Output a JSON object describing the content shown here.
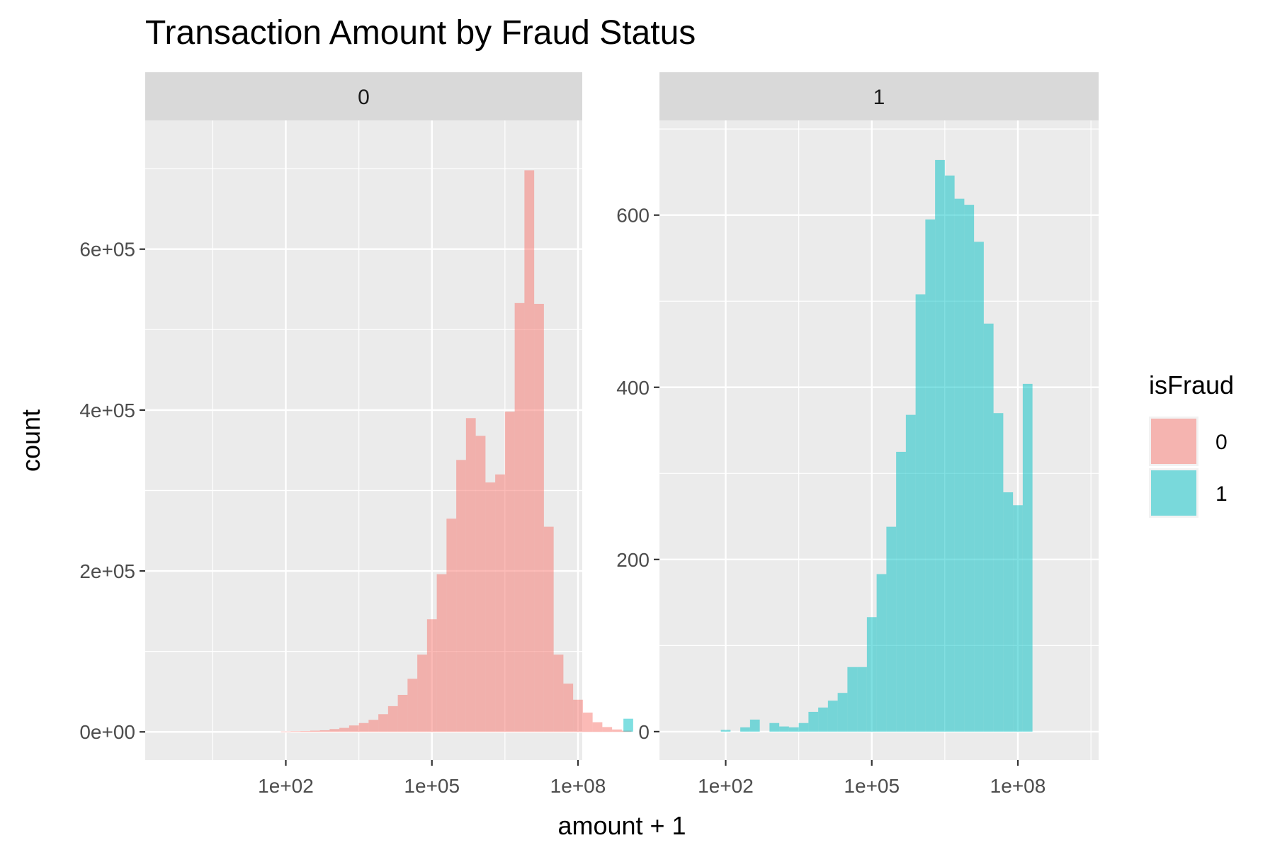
{
  "chart_data": {
    "type": "bar",
    "title": "Transaction Amount by Fraud Status",
    "xlabel": "amount + 1",
    "ylabel": "count",
    "x_scale": "log10",
    "x_tick_labels": [
      "1e+02",
      "1e+05",
      "1e+08"
    ],
    "x_ticks": [
      100,
      100000,
      100000000
    ],
    "grid": true,
    "legend": {
      "title": "isFraud",
      "placement": "right",
      "entries": [
        {
          "label": "0",
          "color": "#F8766D"
        },
        {
          "label": "1",
          "color": "#00BFC4"
        }
      ]
    },
    "bin_width_log10": 0.2,
    "bin_start_log10": -0.1,
    "facets": [
      {
        "label": "0",
        "series_name": "0",
        "color": "#F8766D",
        "ylim": [
          -35000,
          760000
        ],
        "y_ticks": [
          0,
          200000,
          400000,
          600000
        ],
        "y_tick_labels": [
          "0e+00",
          "2e+05",
          "4e+05",
          "6e+05"
        ],
        "bin_start_index": 10,
        "counts": [
          500,
          800,
          1000,
          1500,
          2000,
          3500,
          5000,
          8000,
          11000,
          15000,
          22000,
          32000,
          46000,
          66000,
          96000,
          140000,
          196000,
          265000,
          338000,
          390000,
          368000,
          310000,
          320000,
          398000,
          533000,
          698000,
          532000,
          255000,
          96000,
          60000,
          40000,
          24000,
          12000,
          6000,
          3000,
          1500
        ]
      },
      {
        "label": "1",
        "series_name": "1",
        "color": "#00BFC4",
        "ylim": [
          -33,
          710
        ],
        "y_ticks": [
          0,
          200,
          400,
          600
        ],
        "y_tick_labels": [
          "0",
          "200",
          "400",
          "600"
        ],
        "bin_start_index": 0,
        "counts": [
          15,
          0,
          0,
          0,
          0,
          0,
          0,
          0,
          0,
          0,
          2,
          0,
          5,
          14,
          0,
          10,
          6,
          5,
          10,
          23,
          28,
          36,
          45,
          75,
          75,
          133,
          183,
          238,
          325,
          368,
          508,
          595,
          664,
          646,
          619,
          612,
          569,
          474,
          370,
          278,
          263,
          404
        ]
      }
    ]
  }
}
